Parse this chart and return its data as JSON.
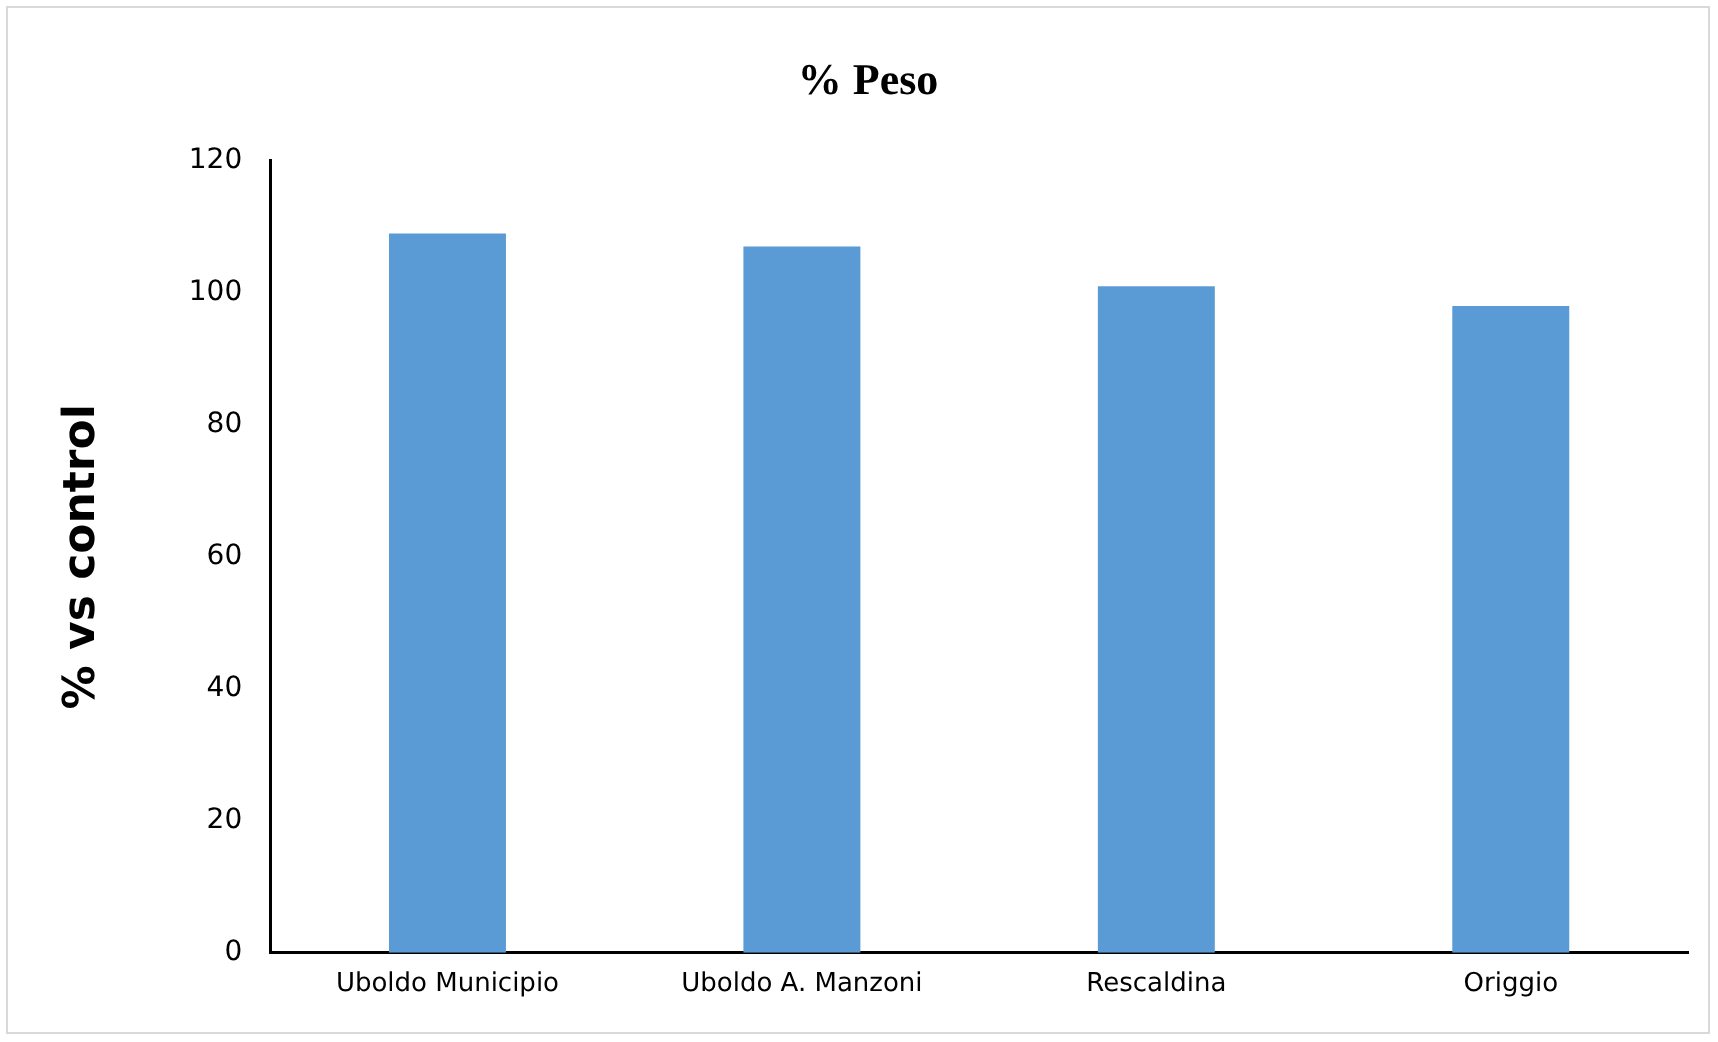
{
  "chart_data": {
    "type": "bar",
    "title": "% Peso",
    "ylabel": "% vs control",
    "categories": [
      "Uboldo Municipio",
      "Uboldo A. Manzoni",
      "Rescaldina",
      "Origgio"
    ],
    "values": [
      109,
      107,
      101,
      98
    ],
    "color": "#5b9bd5",
    "ylim": [
      0,
      120
    ],
    "yticks": [
      0,
      20,
      40,
      60,
      80,
      100,
      120
    ],
    "grid": false,
    "legend": false
  }
}
